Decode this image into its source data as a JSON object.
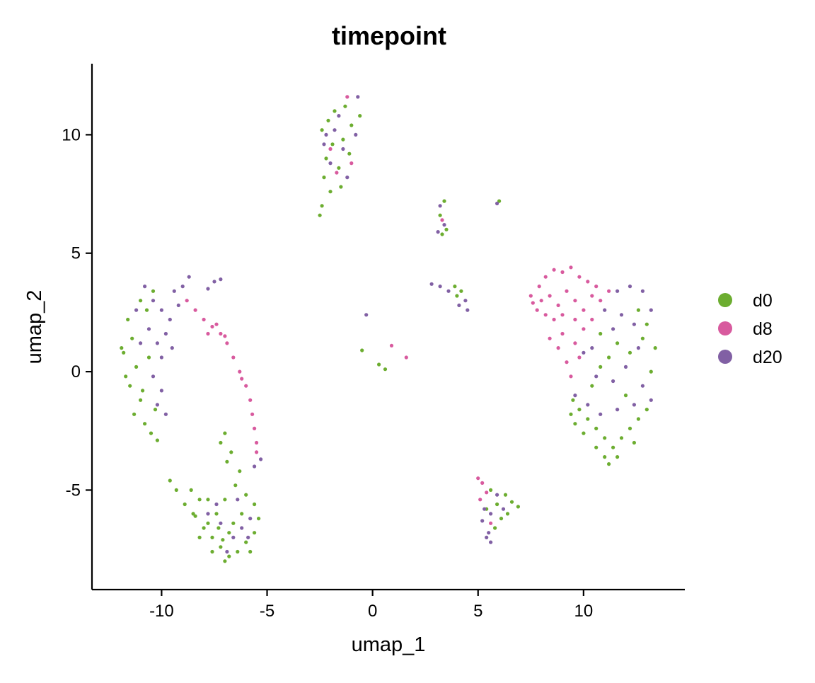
{
  "chart_data": {
    "type": "scatter",
    "title": "timepoint",
    "xlabel": "umap_1",
    "ylabel": "umap_2",
    "xlim": [
      -13.3,
      14.8
    ],
    "ylim": [
      -9.2,
      13.0
    ],
    "x_ticks": [
      -10,
      -5,
      0,
      5,
      10
    ],
    "x_tick_labels": [
      "-10",
      "-5",
      "0",
      "5",
      "10"
    ],
    "y_ticks": [
      -5,
      0,
      5,
      10
    ],
    "y_tick_labels": [
      "-5",
      "0",
      "5",
      "10"
    ],
    "grid": false,
    "legend_position": "right",
    "legend": [
      "d0",
      "d8",
      "d20"
    ],
    "colors": {
      "d0": "#6CAD30",
      "d8": "#D85A9E",
      "d20": "#8160A4"
    },
    "series": [
      {
        "name": "d0",
        "color": "#6CAD30",
        "points": [
          [
            -11.6,
            2.2
          ],
          [
            -11.4,
            1.4
          ],
          [
            -11.8,
            0.8
          ],
          [
            -11.2,
            0.2
          ],
          [
            -11.5,
            -0.6
          ],
          [
            -11.0,
            -1.2
          ],
          [
            -11.3,
            -1.8
          ],
          [
            -10.8,
            -2.2
          ],
          [
            -10.5,
            -2.6
          ],
          [
            -11.0,
            3.0
          ],
          [
            -10.4,
            3.4
          ],
          [
            -11.9,
            1.0
          ],
          [
            -10.6,
            0.6
          ],
          [
            -10.9,
            -0.8
          ],
          [
            -10.3,
            -1.6
          ],
          [
            -11.7,
            -0.2
          ],
          [
            -10.7,
            2.6
          ],
          [
            -10.2,
            -2.9
          ],
          [
            -7.2,
            -3.0
          ],
          [
            -7.0,
            -2.6
          ],
          [
            -6.9,
            -3.8
          ],
          [
            -8.6,
            -5.0
          ],
          [
            -8.2,
            -5.4
          ],
          [
            -9.6,
            -4.6
          ],
          [
            -9.3,
            -5.0
          ],
          [
            -8.9,
            -5.6
          ],
          [
            -8.4,
            -6.1
          ],
          [
            -8.0,
            -6.6
          ],
          [
            -7.6,
            -7.0
          ],
          [
            -7.2,
            -7.4
          ],
          [
            -6.8,
            -7.8
          ],
          [
            -6.4,
            -7.6
          ],
          [
            -6.0,
            -7.2
          ],
          [
            -5.6,
            -6.8
          ],
          [
            -5.4,
            -6.2
          ],
          [
            -5.6,
            -5.6
          ],
          [
            -6.0,
            -5.2
          ],
          [
            -6.5,
            -4.8
          ],
          [
            -7.0,
            -5.4
          ],
          [
            -7.4,
            -6.0
          ],
          [
            -7.8,
            -6.4
          ],
          [
            -8.2,
            -7.0
          ],
          [
            -7.6,
            -7.6
          ],
          [
            -7.0,
            -8.0
          ],
          [
            -6.6,
            -6.4
          ],
          [
            -6.2,
            -6.0
          ],
          [
            -6.8,
            -6.8
          ],
          [
            -7.3,
            -6.6
          ],
          [
            -8.5,
            -6.0
          ],
          [
            -7.8,
            -5.4
          ],
          [
            -6.3,
            -4.2
          ],
          [
            -6.7,
            -3.4
          ],
          [
            -5.8,
            -7.6
          ],
          [
            -7.1,
            -7.1
          ],
          [
            -2.1,
            10.6
          ],
          [
            -2.4,
            10.2
          ],
          [
            -1.9,
            9.6
          ],
          [
            -2.2,
            9.0
          ],
          [
            -1.6,
            8.6
          ],
          [
            -2.3,
            8.2
          ],
          [
            -2.0,
            7.6
          ],
          [
            -2.4,
            7.0
          ],
          [
            -1.3,
            11.2
          ],
          [
            -1.0,
            10.4
          ],
          [
            -1.4,
            9.8
          ],
          [
            -1.8,
            11.0
          ],
          [
            -0.6,
            10.8
          ],
          [
            -1.1,
            9.2
          ],
          [
            -2.5,
            6.6
          ],
          [
            -1.5,
            7.8
          ],
          [
            3.4,
            7.2
          ],
          [
            3.2,
            6.6
          ],
          [
            3.5,
            6.0
          ],
          [
            3.3,
            5.8
          ],
          [
            3.9,
            3.6
          ],
          [
            4.2,
            3.4
          ],
          [
            4.0,
            3.2
          ],
          [
            -0.5,
            0.9
          ],
          [
            0.3,
            0.3
          ],
          [
            0.6,
            0.1
          ],
          [
            6.0,
            7.2
          ],
          [
            9.5,
            -1.2
          ],
          [
            9.8,
            -1.6
          ],
          [
            10.2,
            -2.0
          ],
          [
            10.6,
            -2.4
          ],
          [
            11.0,
            -2.8
          ],
          [
            11.4,
            -3.2
          ],
          [
            11.0,
            -3.6
          ],
          [
            10.6,
            -3.2
          ],
          [
            10.0,
            -2.6
          ],
          [
            9.6,
            -2.2
          ],
          [
            11.8,
            -2.8
          ],
          [
            12.2,
            -2.4
          ],
          [
            12.6,
            -2.0
          ],
          [
            13.0,
            -1.6
          ],
          [
            12.4,
            -3.0
          ],
          [
            11.6,
            -3.6
          ],
          [
            13.2,
            0.0
          ],
          [
            13.4,
            1.0
          ],
          [
            13.0,
            2.0
          ],
          [
            12.6,
            2.6
          ],
          [
            12.8,
            1.4
          ],
          [
            11.6,
            1.2
          ],
          [
            11.2,
            0.6
          ],
          [
            10.8,
            1.6
          ],
          [
            12.0,
            -1.0
          ],
          [
            10.4,
            -0.6
          ],
          [
            9.4,
            -1.8
          ],
          [
            11.2,
            -3.9
          ],
          [
            10.8,
            0.2
          ],
          [
            12.2,
            0.8
          ],
          [
            5.6,
            -5.0
          ],
          [
            5.9,
            -5.6
          ],
          [
            6.3,
            -5.2
          ],
          [
            6.6,
            -5.5
          ],
          [
            6.9,
            -5.7
          ],
          [
            6.1,
            -6.2
          ],
          [
            5.4,
            -5.8
          ],
          [
            5.8,
            -6.6
          ],
          [
            6.4,
            -6.0
          ]
        ]
      },
      {
        "name": "d8",
        "color": "#D85A9E",
        "points": [
          [
            -8.8,
            3.0
          ],
          [
            -8.4,
            2.6
          ],
          [
            -8.0,
            2.2
          ],
          [
            -7.6,
            1.9
          ],
          [
            -7.2,
            1.6
          ],
          [
            -6.9,
            1.2
          ],
          [
            -6.6,
            0.6
          ],
          [
            -6.3,
            0.0
          ],
          [
            -6.0,
            -0.6
          ],
          [
            -5.8,
            -1.2
          ],
          [
            -5.7,
            -1.8
          ],
          [
            -5.6,
            -2.4
          ],
          [
            -5.5,
            -3.0
          ],
          [
            -5.5,
            -3.4
          ],
          [
            -7.4,
            2.0
          ],
          [
            -7.0,
            1.5
          ],
          [
            -7.8,
            1.6
          ],
          [
            -6.2,
            -0.3
          ],
          [
            -2.0,
            9.4
          ],
          [
            -1.2,
            11.6
          ],
          [
            -1.7,
            8.4
          ],
          [
            -1.0,
            8.8
          ],
          [
            3.3,
            6.4
          ],
          [
            0.9,
            1.1
          ],
          [
            1.6,
            0.6
          ],
          [
            7.5,
            3.2
          ],
          [
            7.9,
            3.6
          ],
          [
            8.2,
            4.0
          ],
          [
            8.6,
            4.3
          ],
          [
            9.0,
            4.2
          ],
          [
            9.4,
            4.4
          ],
          [
            9.8,
            4.0
          ],
          [
            10.2,
            3.8
          ],
          [
            10.6,
            3.6
          ],
          [
            8.4,
            3.2
          ],
          [
            8.8,
            2.8
          ],
          [
            9.2,
            3.4
          ],
          [
            9.6,
            3.0
          ],
          [
            10.0,
            2.6
          ],
          [
            8.6,
            2.2
          ],
          [
            9.0,
            1.6
          ],
          [
            8.8,
            1.0
          ],
          [
            9.2,
            0.4
          ],
          [
            9.6,
            1.2
          ],
          [
            10.0,
            1.8
          ],
          [
            10.4,
            2.2
          ],
          [
            8.2,
            2.4
          ],
          [
            8.0,
            3.0
          ],
          [
            7.8,
            2.6
          ],
          [
            9.4,
            -0.2
          ],
          [
            9.8,
            0.6
          ],
          [
            10.8,
            3.0
          ],
          [
            11.2,
            3.4
          ],
          [
            8.4,
            1.4
          ],
          [
            9.0,
            2.4
          ],
          [
            9.6,
            2.2
          ],
          [
            10.4,
            3.2
          ],
          [
            7.6,
            2.9
          ],
          [
            5.0,
            -4.5
          ],
          [
            5.2,
            -4.7
          ],
          [
            5.4,
            -5.1
          ],
          [
            5.1,
            -5.4
          ],
          [
            5.6,
            -6.4
          ]
        ]
      },
      {
        "name": "d20",
        "color": "#8160A4",
        "points": [
          [
            -10.8,
            3.6
          ],
          [
            -10.4,
            3.0
          ],
          [
            -10.0,
            2.6
          ],
          [
            -9.6,
            2.2
          ],
          [
            -9.8,
            1.6
          ],
          [
            -10.2,
            1.2
          ],
          [
            -10.6,
            1.8
          ],
          [
            -11.2,
            2.6
          ],
          [
            -9.4,
            3.4
          ],
          [
            -9.0,
            3.6
          ],
          [
            -9.2,
            2.8
          ],
          [
            -10.0,
            0.6
          ],
          [
            -10.4,
            -0.2
          ],
          [
            -10.0,
            -0.8
          ],
          [
            -9.8,
            -1.8
          ],
          [
            -10.2,
            -1.4
          ],
          [
            -11.0,
            1.2
          ],
          [
            -9.5,
            1.0
          ],
          [
            -8.7,
            4.0
          ],
          [
            -7.2,
            3.9
          ],
          [
            -7.5,
            3.8
          ],
          [
            -7.8,
            3.5
          ],
          [
            -5.3,
            -3.7
          ],
          [
            -5.6,
            -4.0
          ],
          [
            -7.8,
            -6.0
          ],
          [
            -7.2,
            -6.4
          ],
          [
            -6.6,
            -7.0
          ],
          [
            -6.2,
            -6.6
          ],
          [
            -5.8,
            -6.2
          ],
          [
            -6.9,
            -7.6
          ],
          [
            -7.4,
            -5.6
          ],
          [
            -6.4,
            -5.4
          ],
          [
            -5.9,
            -7.0
          ],
          [
            -2.2,
            10.0
          ],
          [
            -1.8,
            10.2
          ],
          [
            -1.4,
            9.4
          ],
          [
            -1.6,
            10.8
          ],
          [
            -0.8,
            10.0
          ],
          [
            -1.2,
            8.2
          ],
          [
            -2.0,
            8.8
          ],
          [
            -0.7,
            11.6
          ],
          [
            -2.3,
            9.6
          ],
          [
            3.2,
            7.0
          ],
          [
            3.4,
            6.2
          ],
          [
            3.1,
            5.9
          ],
          [
            2.8,
            3.7
          ],
          [
            3.2,
            3.6
          ],
          [
            3.6,
            3.4
          ],
          [
            4.4,
            3.0
          ],
          [
            4.1,
            2.8
          ],
          [
            4.5,
            2.6
          ],
          [
            -0.3,
            2.4
          ],
          [
            5.9,
            7.1
          ],
          [
            11.6,
            3.4
          ],
          [
            12.2,
            3.6
          ],
          [
            12.8,
            3.4
          ],
          [
            13.2,
            2.6
          ],
          [
            12.4,
            2.0
          ],
          [
            11.8,
            2.4
          ],
          [
            11.4,
            1.8
          ],
          [
            12.6,
            1.0
          ],
          [
            12.0,
            0.2
          ],
          [
            11.4,
            -0.4
          ],
          [
            10.6,
            -0.2
          ],
          [
            10.0,
            0.8
          ],
          [
            9.6,
            -1.0
          ],
          [
            10.2,
            -1.4
          ],
          [
            10.8,
            -1.8
          ],
          [
            11.6,
            -1.6
          ],
          [
            12.4,
            -1.4
          ],
          [
            13.2,
            -1.2
          ],
          [
            12.8,
            -0.6
          ],
          [
            11.0,
            2.6
          ],
          [
            10.4,
            1.0
          ],
          [
            5.3,
            -5.8
          ],
          [
            5.6,
            -6.0
          ],
          [
            5.5,
            -6.8
          ],
          [
            5.6,
            -7.2
          ],
          [
            5.4,
            -7.0
          ],
          [
            5.9,
            -5.2
          ],
          [
            6.2,
            -5.8
          ],
          [
            5.2,
            -6.3
          ]
        ]
      }
    ]
  }
}
